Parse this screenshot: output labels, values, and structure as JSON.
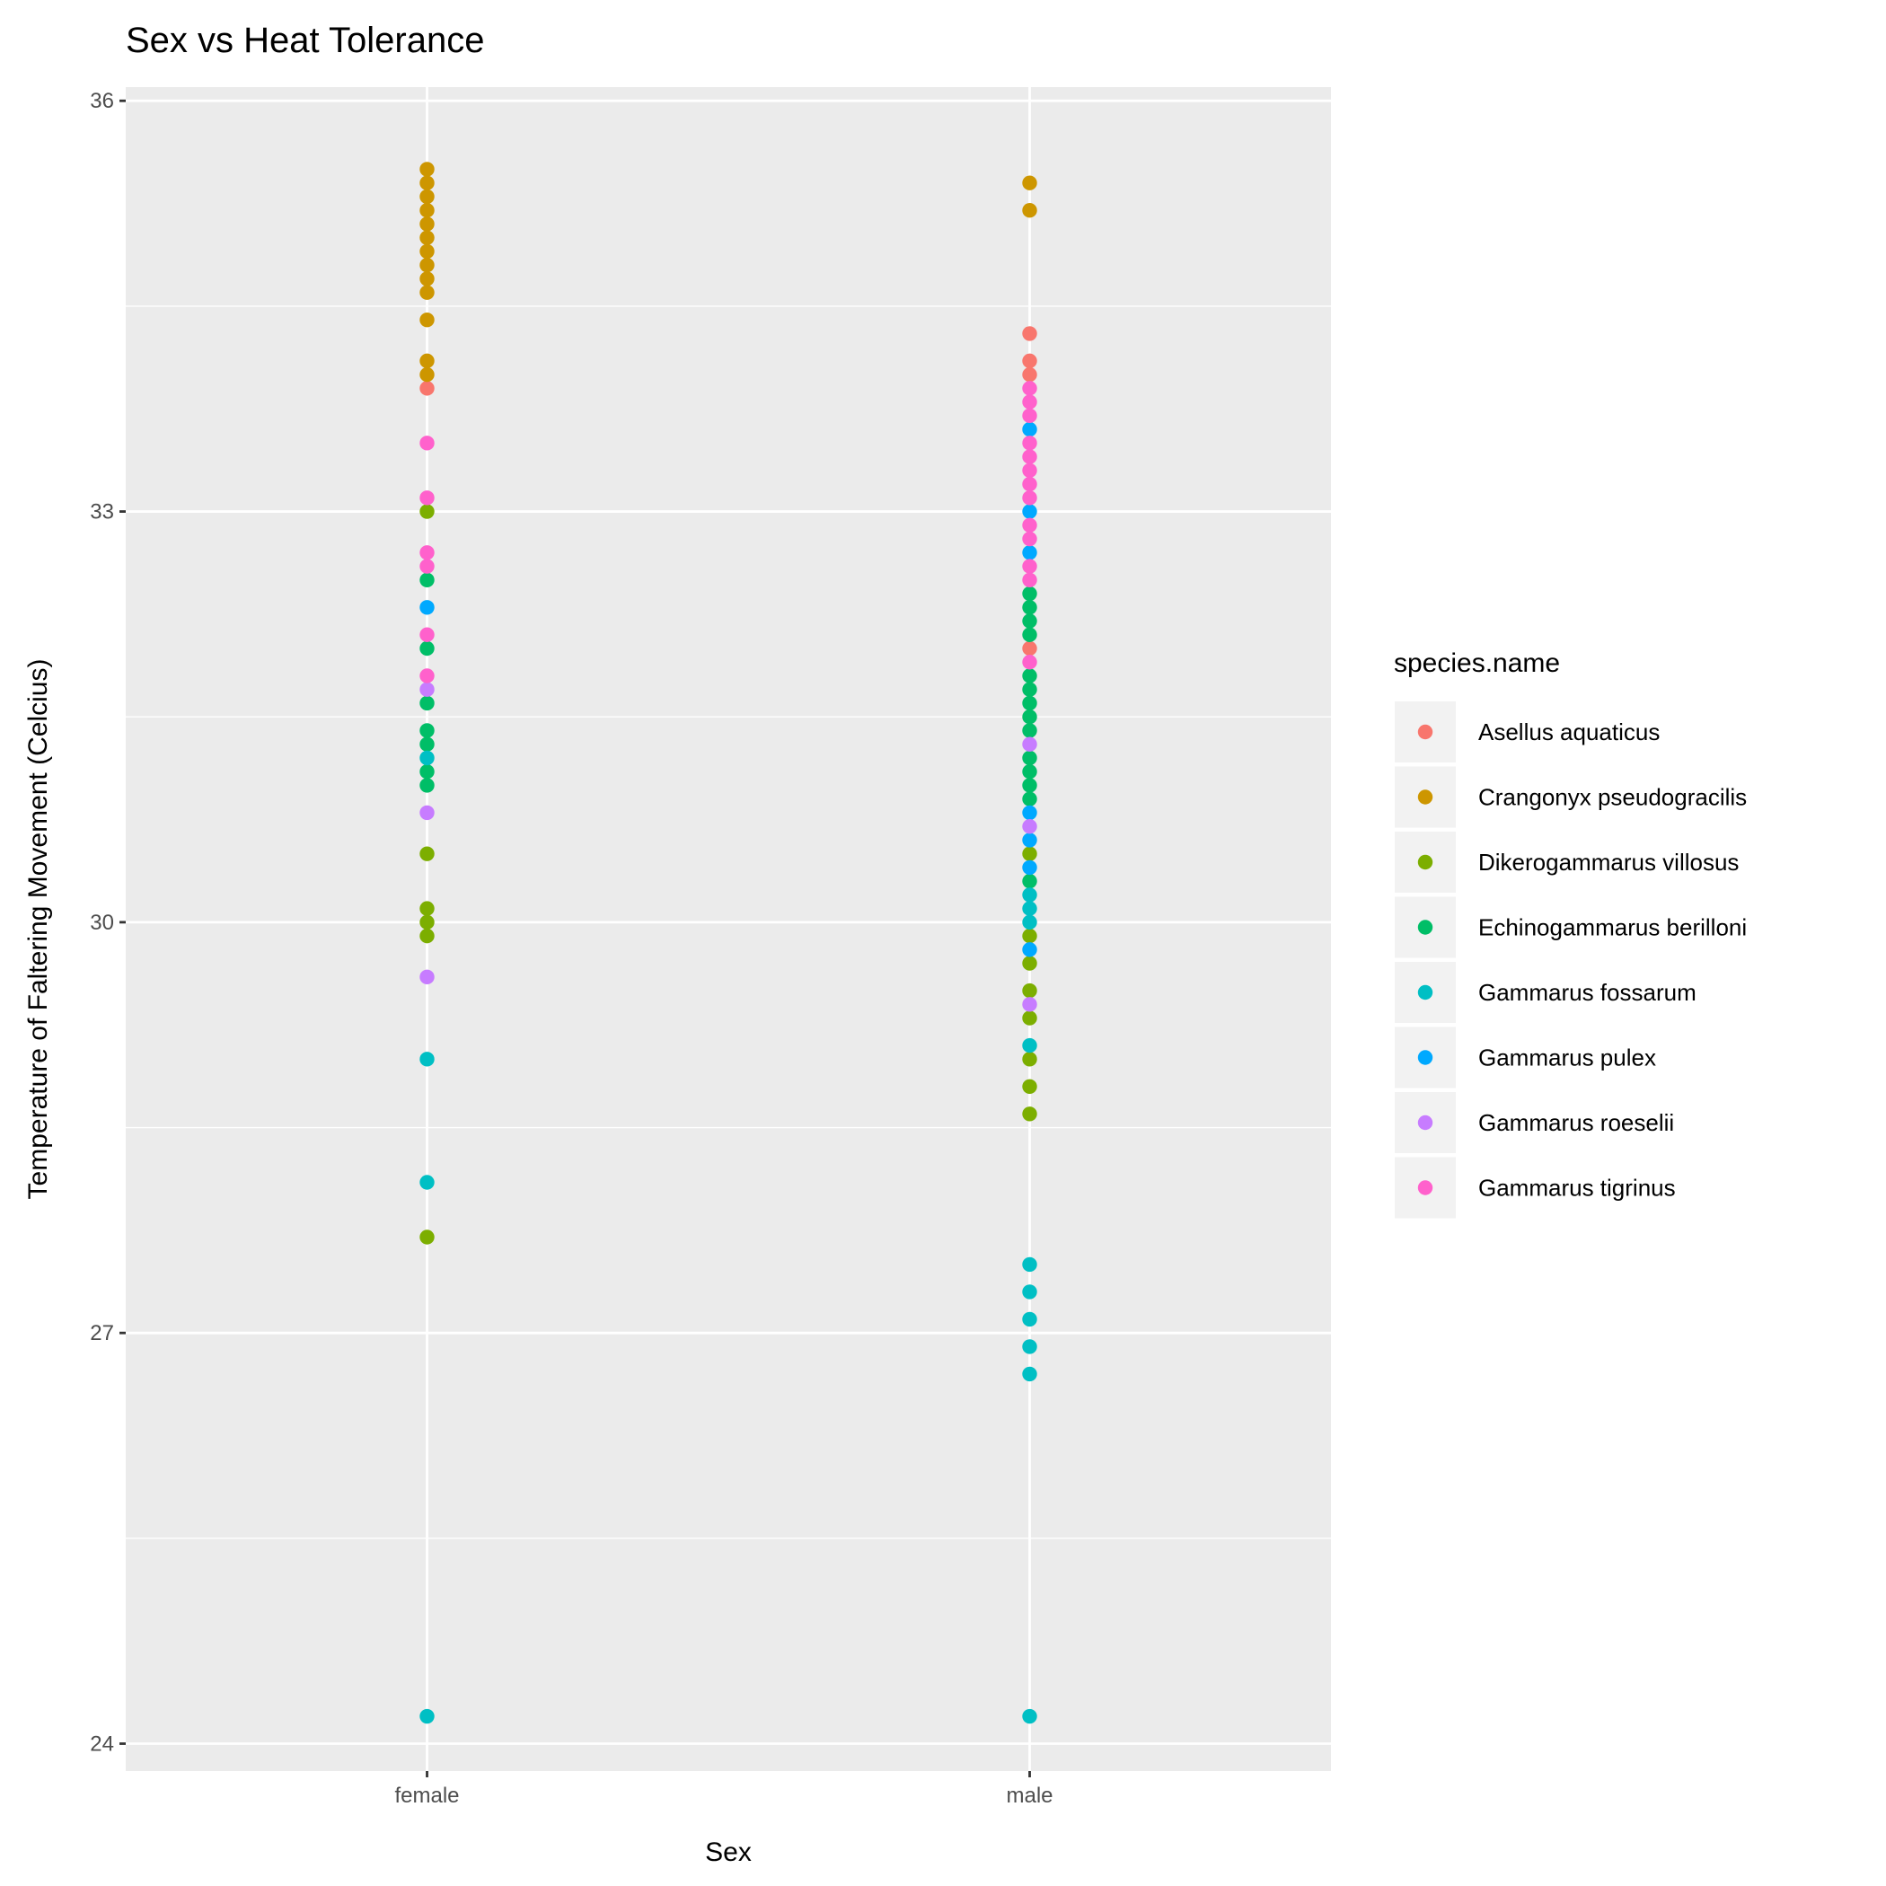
{
  "chart_data": {
    "type": "scatter",
    "title": "Sex vs Heat Tolerance",
    "xlabel": "Sex",
    "ylabel": "Temperature of Faltering Movement (Celcius)",
    "categories": [
      "female",
      "male"
    ],
    "ylim": [
      23.8,
      36.1
    ],
    "yticks": [
      24,
      27,
      30,
      33,
      36
    ],
    "grid": true,
    "legend": {
      "title": "species.name",
      "placement": "right"
    },
    "series": [
      {
        "name": "Asellus aquaticus",
        "color": "#F8766D",
        "points": [
          {
            "x": "female",
            "y": 33.9
          },
          {
            "x": "male",
            "y": 34.3
          },
          {
            "x": "male",
            "y": 34.1
          },
          {
            "x": "male",
            "y": 34.0
          },
          {
            "x": "male",
            "y": 32.0
          }
        ]
      },
      {
        "name": "Crangonyx pseudogracilis",
        "color": "#CD9600",
        "points": [
          {
            "x": "female",
            "y": 35.5
          },
          {
            "x": "female",
            "y": 35.4
          },
          {
            "x": "female",
            "y": 35.3
          },
          {
            "x": "female",
            "y": 35.2
          },
          {
            "x": "female",
            "y": 35.1
          },
          {
            "x": "female",
            "y": 35.0
          },
          {
            "x": "female",
            "y": 34.9
          },
          {
            "x": "female",
            "y": 34.8
          },
          {
            "x": "female",
            "y": 34.7
          },
          {
            "x": "female",
            "y": 34.6
          },
          {
            "x": "female",
            "y": 34.4
          },
          {
            "x": "female",
            "y": 34.1
          },
          {
            "x": "female",
            "y": 34.0
          },
          {
            "x": "male",
            "y": 35.4
          },
          {
            "x": "male",
            "y": 35.2
          }
        ]
      },
      {
        "name": "Dikerogammarus villosus",
        "color": "#7CAE00",
        "points": [
          {
            "x": "female",
            "y": 33.0
          },
          {
            "x": "female",
            "y": 30.5
          },
          {
            "x": "female",
            "y": 30.1
          },
          {
            "x": "female",
            "y": 30.0
          },
          {
            "x": "female",
            "y": 29.9
          },
          {
            "x": "female",
            "y": 27.7
          },
          {
            "x": "male",
            "y": 30.5
          },
          {
            "x": "male",
            "y": 29.9
          },
          {
            "x": "male",
            "y": 29.7
          },
          {
            "x": "male",
            "y": 29.5
          },
          {
            "x": "male",
            "y": 29.3
          },
          {
            "x": "male",
            "y": 29.0
          },
          {
            "x": "male",
            "y": 28.8
          },
          {
            "x": "male",
            "y": 28.6
          }
        ]
      },
      {
        "name": "Echinogammarus berilloni",
        "color": "#00BE67",
        "points": [
          {
            "x": "female",
            "y": 32.5
          },
          {
            "x": "female",
            "y": 32.0
          },
          {
            "x": "female",
            "y": 31.6
          },
          {
            "x": "female",
            "y": 31.4
          },
          {
            "x": "female",
            "y": 31.3
          },
          {
            "x": "female",
            "y": 31.1
          },
          {
            "x": "female",
            "y": 31.0
          },
          {
            "x": "male",
            "y": 32.4
          },
          {
            "x": "male",
            "y": 32.3
          },
          {
            "x": "male",
            "y": 32.2
          },
          {
            "x": "male",
            "y": 32.1
          },
          {
            "x": "male",
            "y": 31.8
          },
          {
            "x": "male",
            "y": 31.7
          },
          {
            "x": "male",
            "y": 31.6
          },
          {
            "x": "male",
            "y": 31.5
          },
          {
            "x": "male",
            "y": 31.4
          },
          {
            "x": "male",
            "y": 31.2
          },
          {
            "x": "male",
            "y": 31.1
          },
          {
            "x": "male",
            "y": 31.0
          },
          {
            "x": "male",
            "y": 30.9
          },
          {
            "x": "male",
            "y": 30.3
          }
        ]
      },
      {
        "name": "Gammarus fossarum",
        "color": "#00BFC4",
        "points": [
          {
            "x": "female",
            "y": 31.2
          },
          {
            "x": "female",
            "y": 29.0
          },
          {
            "x": "female",
            "y": 28.1
          },
          {
            "x": "female",
            "y": 24.2
          },
          {
            "x": "male",
            "y": 30.2
          },
          {
            "x": "male",
            "y": 30.1
          },
          {
            "x": "male",
            "y": 30.0
          },
          {
            "x": "male",
            "y": 29.1
          },
          {
            "x": "male",
            "y": 27.5
          },
          {
            "x": "male",
            "y": 27.3
          },
          {
            "x": "male",
            "y": 27.1
          },
          {
            "x": "male",
            "y": 26.9
          },
          {
            "x": "male",
            "y": 26.7
          },
          {
            "x": "male",
            "y": 24.2
          }
        ]
      },
      {
        "name": "Gammarus pulex",
        "color": "#00A9FF",
        "points": [
          {
            "x": "female",
            "y": 32.3
          },
          {
            "x": "male",
            "y": 33.6
          },
          {
            "x": "male",
            "y": 33.0
          },
          {
            "x": "male",
            "y": 32.7
          },
          {
            "x": "male",
            "y": 30.8
          },
          {
            "x": "male",
            "y": 30.6
          },
          {
            "x": "male",
            "y": 30.4
          },
          {
            "x": "male",
            "y": 29.8
          }
        ]
      },
      {
        "name": "Gammarus roeselii",
        "color": "#C77CFF",
        "points": [
          {
            "x": "female",
            "y": 31.7
          },
          {
            "x": "female",
            "y": 30.8
          },
          {
            "x": "female",
            "y": 29.6
          },
          {
            "x": "male",
            "y": 31.3
          },
          {
            "x": "male",
            "y": 30.7
          },
          {
            "x": "male",
            "y": 29.4
          }
        ]
      },
      {
        "name": "Gammarus tigrinus",
        "color": "#FF61CC",
        "points": [
          {
            "x": "female",
            "y": 33.5
          },
          {
            "x": "female",
            "y": 33.1
          },
          {
            "x": "female",
            "y": 32.7
          },
          {
            "x": "female",
            "y": 32.6
          },
          {
            "x": "female",
            "y": 32.1
          },
          {
            "x": "female",
            "y": 31.8
          },
          {
            "x": "male",
            "y": 33.9
          },
          {
            "x": "male",
            "y": 33.8
          },
          {
            "x": "male",
            "y": 33.7
          },
          {
            "x": "male",
            "y": 33.5
          },
          {
            "x": "male",
            "y": 33.4
          },
          {
            "x": "male",
            "y": 33.3
          },
          {
            "x": "male",
            "y": 33.2
          },
          {
            "x": "male",
            "y": 33.1
          },
          {
            "x": "male",
            "y": 32.9
          },
          {
            "x": "male",
            "y": 32.8
          },
          {
            "x": "male",
            "y": 32.6
          },
          {
            "x": "male",
            "y": 32.5
          },
          {
            "x": "male",
            "y": 31.9
          }
        ]
      }
    ]
  }
}
